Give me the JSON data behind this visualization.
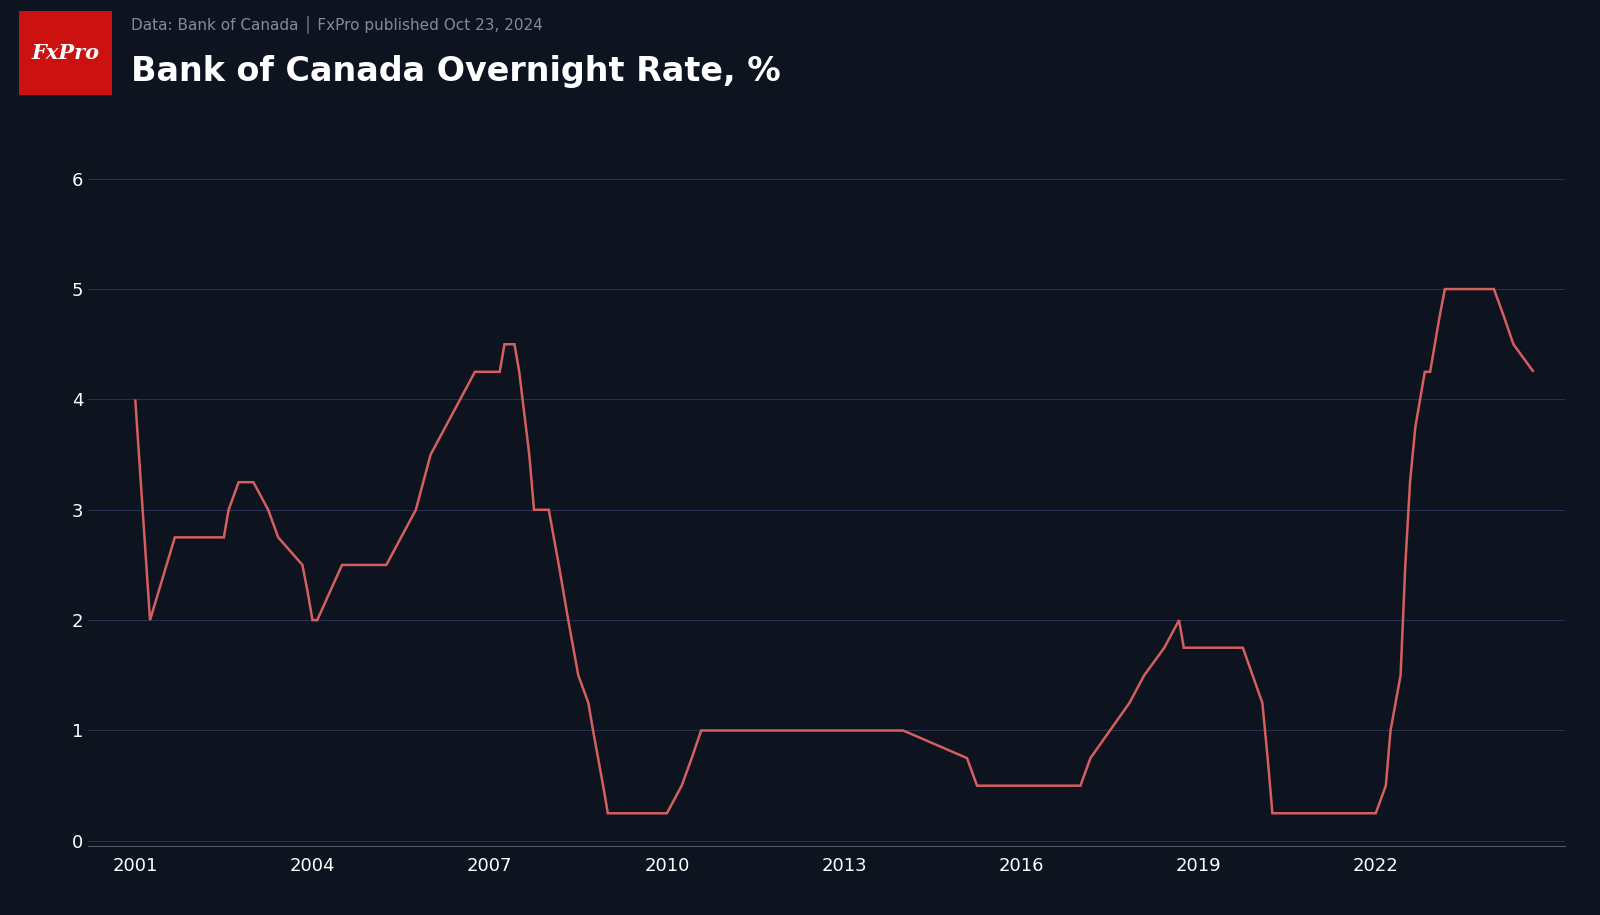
{
  "title": "Bank of Canada Overnight Rate, %",
  "subtitle": "Data: Bank of Canada │ FxPro published Oct 23, 2024",
  "background_color": "#0e1320",
  "header_bg_color": "#1c2333",
  "line_color": "#d45f5f",
  "grid_color": "#2a3050",
  "text_color": "#ffffff",
  "subtitle_color": "#888899",
  "title_fontsize": 24,
  "subtitle_fontsize": 11,
  "tick_fontsize": 13,
  "logo_bg": "#cc1111",
  "logo_text": "FxPro",
  "ylim": [
    -0.05,
    6.5
  ],
  "yticks": [
    0,
    1,
    2,
    3,
    4,
    5,
    6
  ],
  "xticks": [
    2001,
    2004,
    2007,
    2010,
    2013,
    2016,
    2019,
    2022
  ],
  "xlim": [
    2000.2,
    2025.2
  ],
  "data": [
    [
      2001.0,
      4.0
    ],
    [
      2001.25,
      2.0
    ],
    [
      2001.67,
      2.75
    ],
    [
      2002.0,
      2.75
    ],
    [
      2002.5,
      2.75
    ],
    [
      2002.58,
      3.0
    ],
    [
      2002.75,
      3.25
    ],
    [
      2003.0,
      3.25
    ],
    [
      2003.25,
      3.0
    ],
    [
      2003.42,
      2.75
    ],
    [
      2003.83,
      2.5
    ],
    [
      2003.92,
      2.25
    ],
    [
      2004.0,
      2.0
    ],
    [
      2004.08,
      2.0
    ],
    [
      2004.5,
      2.5
    ],
    [
      2005.0,
      2.5
    ],
    [
      2005.25,
      2.5
    ],
    [
      2005.75,
      3.0
    ],
    [
      2006.0,
      3.5
    ],
    [
      2006.25,
      3.75
    ],
    [
      2006.5,
      4.0
    ],
    [
      2006.75,
      4.25
    ],
    [
      2007.0,
      4.25
    ],
    [
      2007.17,
      4.25
    ],
    [
      2007.25,
      4.5
    ],
    [
      2007.42,
      4.5
    ],
    [
      2007.5,
      4.25
    ],
    [
      2007.67,
      3.5
    ],
    [
      2007.75,
      3.0
    ],
    [
      2008.0,
      3.0
    ],
    [
      2008.17,
      2.5
    ],
    [
      2008.33,
      2.0
    ],
    [
      2008.5,
      1.5
    ],
    [
      2008.67,
      1.25
    ],
    [
      2008.75,
      1.0
    ],
    [
      2008.92,
      0.5
    ],
    [
      2009.0,
      0.25
    ],
    [
      2009.17,
      0.25
    ],
    [
      2010.0,
      0.25
    ],
    [
      2010.25,
      0.5
    ],
    [
      2010.42,
      0.75
    ],
    [
      2010.58,
      1.0
    ],
    [
      2010.75,
      1.0
    ],
    [
      2011.0,
      1.0
    ],
    [
      2014.0,
      1.0
    ],
    [
      2015.08,
      0.75
    ],
    [
      2015.25,
      0.5
    ],
    [
      2016.0,
      0.5
    ],
    [
      2016.5,
      0.5
    ],
    [
      2017.0,
      0.5
    ],
    [
      2017.17,
      0.75
    ],
    [
      2017.5,
      1.0
    ],
    [
      2017.83,
      1.25
    ],
    [
      2018.08,
      1.5
    ],
    [
      2018.42,
      1.75
    ],
    [
      2018.67,
      2.0
    ],
    [
      2018.75,
      1.75
    ],
    [
      2019.0,
      1.75
    ],
    [
      2019.5,
      1.75
    ],
    [
      2019.75,
      1.75
    ],
    [
      2020.08,
      1.25
    ],
    [
      2020.17,
      0.75
    ],
    [
      2020.25,
      0.25
    ],
    [
      2020.42,
      0.25
    ],
    [
      2021.0,
      0.25
    ],
    [
      2022.0,
      0.25
    ],
    [
      2022.17,
      0.5
    ],
    [
      2022.25,
      1.0
    ],
    [
      2022.42,
      1.5
    ],
    [
      2022.5,
      2.5
    ],
    [
      2022.58,
      3.25
    ],
    [
      2022.67,
      3.75
    ],
    [
      2022.83,
      4.25
    ],
    [
      2022.92,
      4.25
    ],
    [
      2023.0,
      4.5
    ],
    [
      2023.08,
      4.75
    ],
    [
      2023.17,
      5.0
    ],
    [
      2023.5,
      5.0
    ],
    [
      2023.75,
      5.0
    ],
    [
      2024.0,
      5.0
    ],
    [
      2024.17,
      4.75
    ],
    [
      2024.33,
      4.5
    ],
    [
      2024.67,
      4.25
    ]
  ]
}
